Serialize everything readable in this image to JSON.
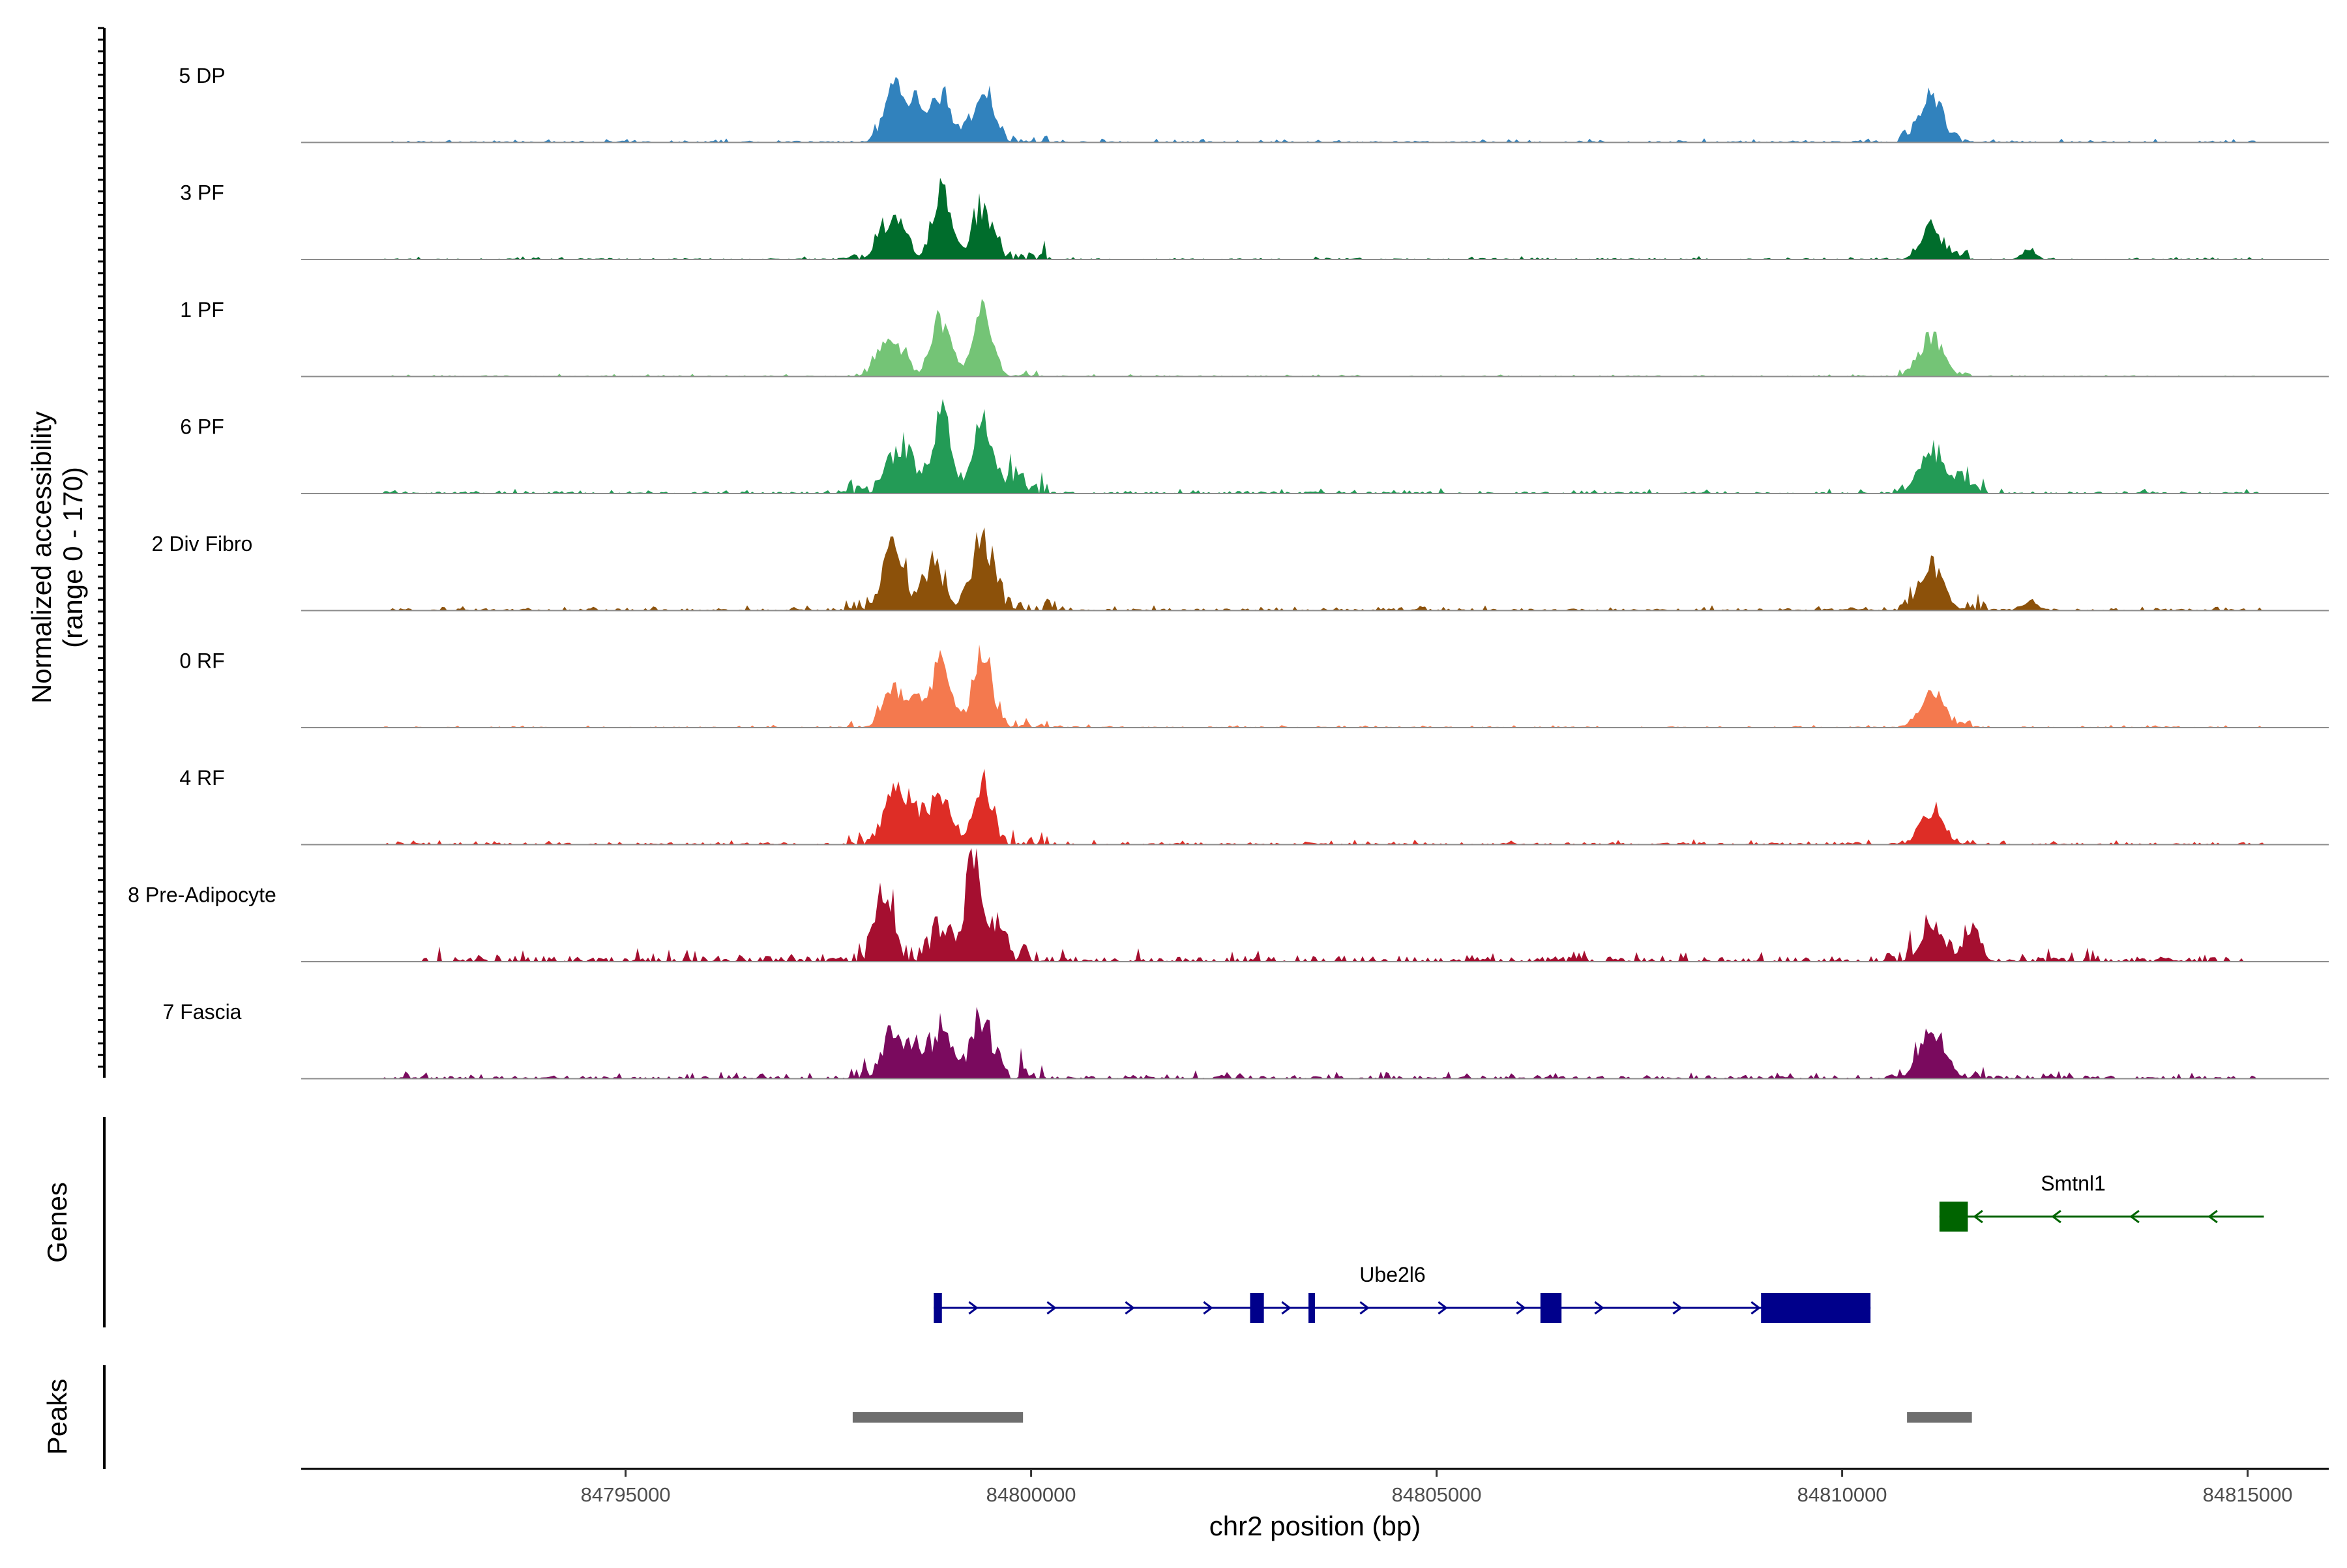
{
  "chart_data": {
    "type": "coverage-track",
    "genome": "chr2",
    "xlabel": "chr2 position (bp)",
    "xlim": [
      84791000,
      84816000
    ],
    "xticks": [
      84795000,
      84800000,
      84805000,
      84810000,
      84815000
    ],
    "xtick_labels": [
      "84795000",
      "84800000",
      "84805000",
      "84810000",
      "84815000"
    ],
    "coverage_ylabel": "Normalized accessibility",
    "coverage_yrange_label": "(range 0 - 170)",
    "ylim": [
      0,
      170
    ],
    "tracks": [
      {
        "name": "5 DP",
        "color": "#3182BD",
        "peaks": [
          [
            84798300,
            0.44,
            120
          ],
          [
            84798600,
            0.3,
            120
          ],
          [
            84798900,
            0.33,
            130
          ],
          [
            84799400,
            0.4,
            130
          ],
          [
            84811100,
            0.4,
            140
          ]
        ],
        "noise": [
          [
            84797900,
            84800200,
            0.07
          ],
          [
            84792000,
            84815200,
            0.015
          ],
          [
            84810700,
            84811600,
            0.06
          ]
        ]
      },
      {
        "name": "3 PF",
        "color": "#006D2C",
        "peaks": [
          [
            84798200,
            0.28,
            100
          ],
          [
            84798400,
            0.25,
            90
          ],
          [
            84798900,
            0.58,
            110
          ],
          [
            84799400,
            0.45,
            120
          ],
          [
            84811100,
            0.25,
            130
          ],
          [
            84812300,
            0.09,
            80
          ]
        ],
        "noise": [
          [
            84797700,
            84800200,
            0.08
          ],
          [
            84792000,
            84815200,
            0.012
          ],
          [
            84810700,
            84811600,
            0.06
          ]
        ]
      },
      {
        "name": "1 PF",
        "color": "#74C476",
        "peaks": [
          [
            84798200,
            0.3,
            110
          ],
          [
            84798400,
            0.16,
            90
          ],
          [
            84798900,
            0.5,
            120
          ],
          [
            84799400,
            0.58,
            110
          ],
          [
            84811100,
            0.35,
            140
          ]
        ],
        "noise": [
          [
            84797700,
            84800100,
            0.06
          ],
          [
            84792000,
            84815200,
            0.01
          ],
          [
            84810700,
            84811600,
            0.05
          ]
        ]
      },
      {
        "name": "6 PF",
        "color": "#239B56",
        "peaks": [
          [
            84798300,
            0.3,
            110
          ],
          [
            84798500,
            0.28,
            100
          ],
          [
            84798900,
            0.7,
            110
          ],
          [
            84799400,
            0.55,
            120
          ],
          [
            84799800,
            0.14,
            90
          ],
          [
            84811100,
            0.38,
            140
          ],
          [
            84811500,
            0.12,
            100
          ]
        ],
        "noise": [
          [
            84797700,
            84800200,
            0.09
          ],
          [
            84792000,
            84815200,
            0.02
          ],
          [
            84810700,
            84811800,
            0.07
          ]
        ]
      },
      {
        "name": "2 Div Fibro",
        "color": "#8C510A",
        "peaks": [
          [
            84798300,
            0.52,
            130
          ],
          [
            84798800,
            0.38,
            120
          ],
          [
            84799400,
            0.63,
            130
          ],
          [
            84811100,
            0.4,
            140
          ],
          [
            84812300,
            0.08,
            90
          ]
        ],
        "noise": [
          [
            84797700,
            84800300,
            0.1
          ],
          [
            84792000,
            84815200,
            0.02
          ],
          [
            84810700,
            84811800,
            0.07
          ]
        ]
      },
      {
        "name": "0 RF",
        "color": "#F4794E",
        "peaks": [
          [
            84798300,
            0.34,
            120
          ],
          [
            84798600,
            0.25,
            100
          ],
          [
            84798900,
            0.6,
            110
          ],
          [
            84799400,
            0.66,
            110
          ],
          [
            84811100,
            0.3,
            140
          ]
        ],
        "noise": [
          [
            84797700,
            84800200,
            0.08
          ],
          [
            84792000,
            84815200,
            0.012
          ],
          [
            84810700,
            84811600,
            0.06
          ]
        ]
      },
      {
        "name": "4 RF",
        "color": "#DE2D26",
        "peaks": [
          [
            84798300,
            0.4,
            120
          ],
          [
            84798600,
            0.28,
            110
          ],
          [
            84798900,
            0.4,
            110
          ],
          [
            84799400,
            0.5,
            110
          ],
          [
            84811100,
            0.26,
            130
          ]
        ],
        "noise": [
          [
            84797700,
            84800200,
            0.1
          ],
          [
            84792000,
            84815200,
            0.02
          ],
          [
            84810700,
            84811600,
            0.06
          ]
        ]
      },
      {
        "name": "8 Pre-Adipocyte",
        "color": "#A50F30",
        "peaks": [
          [
            84798200,
            0.6,
            100
          ],
          [
            84798900,
            0.28,
            120
          ],
          [
            84799300,
            0.92,
            100
          ],
          [
            84799600,
            0.22,
            90
          ],
          [
            84811100,
            0.3,
            120
          ],
          [
            84811600,
            0.28,
            100
          ]
        ],
        "noise": [
          [
            84797700,
            84800000,
            0.14
          ],
          [
            84792500,
            84815000,
            0.05
          ],
          [
            84810600,
            84811800,
            0.1
          ]
        ]
      },
      {
        "name": "7 Fascia",
        "color": "#7A0A5E",
        "peaks": [
          [
            84798300,
            0.38,
            120
          ],
          [
            84798600,
            0.22,
            100
          ],
          [
            84798900,
            0.42,
            120
          ],
          [
            84799400,
            0.5,
            120
          ],
          [
            84811100,
            0.42,
            140
          ]
        ],
        "noise": [
          [
            84797700,
            84800200,
            0.1
          ],
          [
            84792000,
            84815200,
            0.03
          ],
          [
            84810600,
            84812000,
            0.07
          ]
        ]
      }
    ],
    "genes_label": "Genes",
    "genes": [
      {
        "name": "Smtnl1",
        "strand": "-",
        "color": "#006400",
        "start": 84811200,
        "end": 84815200,
        "exons": [
          [
            84811200,
            84811550
          ]
        ]
      },
      {
        "name": "Ube2l6",
        "strand": "+",
        "color": "#00008B",
        "start": 84798800,
        "end": 84810350,
        "exons": [
          [
            84798800,
            84798900
          ],
          [
            84802700,
            84802870
          ],
          [
            84803420,
            84803500
          ],
          [
            84806280,
            84806540
          ],
          [
            84809000,
            84810350
          ]
        ]
      }
    ],
    "peaks_label": "Peaks",
    "peak_regions": [
      [
        84797800,
        84799900
      ],
      [
        84810800,
        84811600
      ]
    ]
  }
}
